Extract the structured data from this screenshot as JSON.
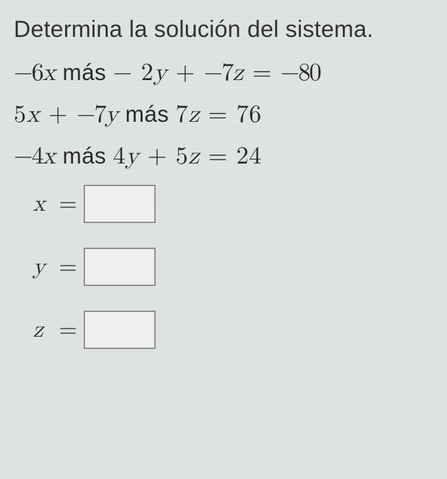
{
  "prompt": "Determina la solución del sistema.",
  "equations": {
    "eq1": {
      "t1": "−6",
      "v1": "x",
      "w1": " más ",
      "t2": " − 2",
      "v2": "y",
      "op2": " + ",
      "t3": "−7",
      "v3": "z",
      "eq": " = ",
      "rhs": "−80"
    },
    "eq2": {
      "t1": "5",
      "v1": "x",
      "op1": " + ",
      "t2": "−7",
      "v2": "y",
      "w2": " más ",
      "t3": "7",
      "v3": "z",
      "eq": " = ",
      "rhs": "76"
    },
    "eq3": {
      "t1": "−4",
      "v1": "x",
      "w1": " más ",
      "t2": "4",
      "v2": "y",
      "op2": " + ",
      "t3": "5",
      "v3": "z",
      "eq": " = ",
      "rhs": "24"
    }
  },
  "answers": {
    "x": {
      "label": "x",
      "eq": "=",
      "value": ""
    },
    "y": {
      "label": "y",
      "eq": "=",
      "value": ""
    },
    "z": {
      "label": "z",
      "eq": "=",
      "value": ""
    }
  },
  "style": {
    "background": "#e2e5e5",
    "text_color": "#2c2c2c",
    "box_border": "#8d8d8d",
    "box_bg": "#eef0ef",
    "prompt_fontsize": 34,
    "eq_fontsize": 36,
    "answer_fontsize": 34
  }
}
